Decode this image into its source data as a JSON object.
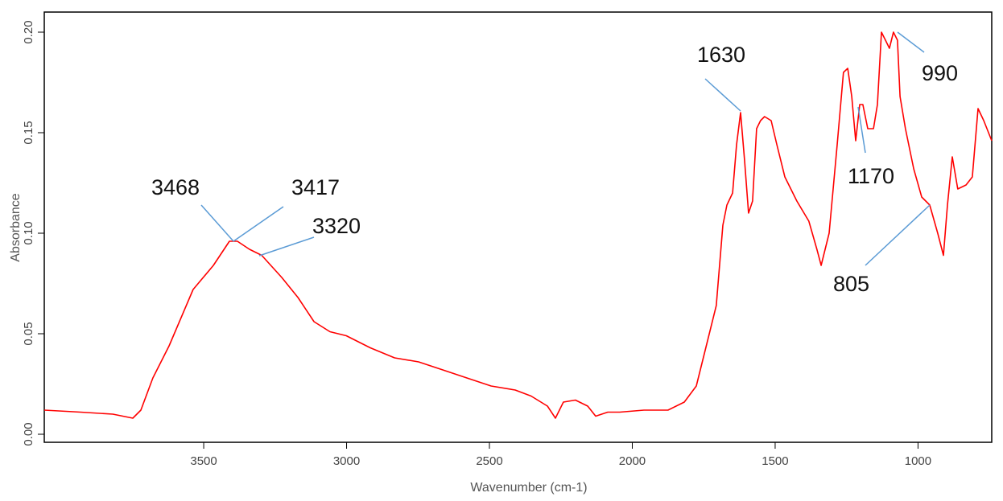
{
  "chart_data": {
    "type": "line",
    "xlabel": "Wavenumber (cm-1)",
    "ylabel": "Absorbance",
    "xlim": [
      4058,
      742
    ],
    "ylim": [
      -0.004,
      0.21
    ],
    "xticks": [
      3500,
      3000,
      2500,
      2000,
      1500,
      1000
    ],
    "yticks": [
      {
        "value": 0,
        "label": "0.00"
      },
      {
        "value": 0.05,
        "label": "0.05"
      },
      {
        "value": 0.1,
        "label": "0.10"
      },
      {
        "value": 0.15,
        "label": "0.15"
      },
      {
        "value": 0.2,
        "label": "0.20"
      }
    ],
    "color": "#ff0000",
    "annotation_color": "#5b9bd5",
    "x": [
      4058,
      3931,
      3818,
      3748,
      3720,
      3678,
      3621,
      3537,
      3466,
      3410,
      3382,
      3340,
      3297,
      3227,
      3170,
      3114,
      3058,
      3001,
      2917,
      2832,
      2748,
      2663,
      2579,
      2494,
      2410,
      2354,
      2297,
      2269,
      2241,
      2199,
      2156,
      2128,
      2086,
      2044,
      1959,
      1875,
      1818,
      1776,
      1734,
      1706,
      1683,
      1669,
      1649,
      1635,
      1621,
      1607,
      1593,
      1579,
      1565,
      1551,
      1537,
      1514,
      1494,
      1466,
      1424,
      1382,
      1354,
      1339,
      1311,
      1283,
      1261,
      1246,
      1232,
      1218,
      1204,
      1193,
      1176,
      1156,
      1142,
      1128,
      1114,
      1100,
      1086,
      1072,
      1063,
      1044,
      1015,
      987,
      959,
      931,
      911,
      897,
      880,
      861,
      832,
      810,
      790,
      770,
      742
    ],
    "values": [
      0.012,
      0.011,
      0.01,
      0.008,
      0.012,
      0.028,
      0.044,
      0.072,
      0.084,
      0.096,
      0.096,
      0.092,
      0.089,
      0.078,
      0.068,
      0.056,
      0.051,
      0.049,
      0.043,
      0.038,
      0.036,
      0.032,
      0.028,
      0.024,
      0.022,
      0.019,
      0.014,
      0.008,
      0.016,
      0.017,
      0.014,
      0.009,
      0.011,
      0.011,
      0.012,
      0.012,
      0.016,
      0.024,
      0.048,
      0.064,
      0.104,
      0.114,
      0.12,
      0.144,
      0.16,
      0.136,
      0.11,
      0.116,
      0.152,
      0.156,
      0.158,
      0.156,
      0.144,
      0.128,
      0.116,
      0.106,
      0.092,
      0.084,
      0.1,
      0.144,
      0.18,
      0.182,
      0.168,
      0.146,
      0.164,
      0.164,
      0.152,
      0.152,
      0.164,
      0.2,
      0.196,
      0.192,
      0.2,
      0.196,
      0.168,
      0.152,
      0.132,
      0.118,
      0.114,
      0.1,
      0.089,
      0.114,
      0.138,
      0.122,
      0.124,
      0.128,
      0.162,
      0.156,
      0.146
    ],
    "annotations": [
      "3468",
      "3417",
      "3320",
      "1630",
      "1170",
      "990",
      "805"
    ]
  }
}
